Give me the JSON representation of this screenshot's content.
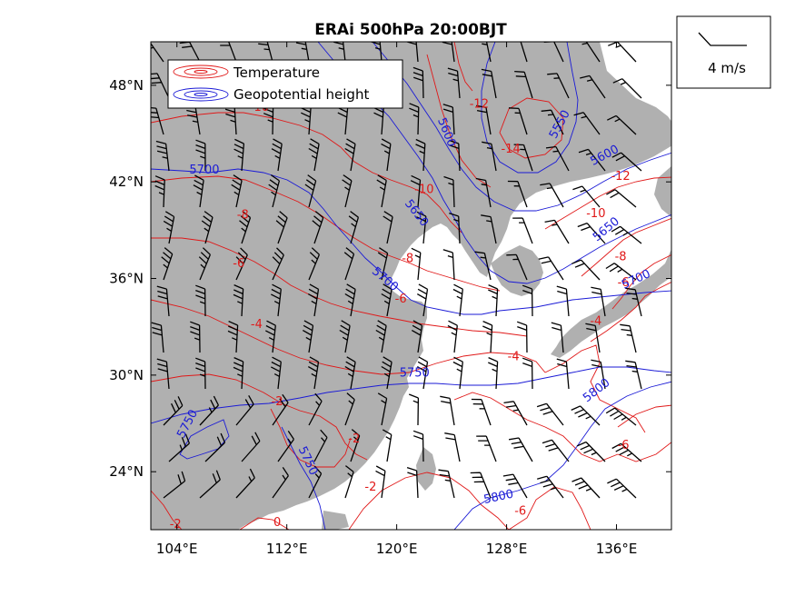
{
  "chart_data": {
    "type": "weather-map",
    "title": "ERAi 500hPa 20:00BJT",
    "x_ticks": [
      "104°E",
      "112°E",
      "120°E",
      "128°E",
      "136°E"
    ],
    "x_tick_values": [
      104,
      112,
      120,
      128,
      136
    ],
    "y_ticks": [
      "48°N",
      "42°N",
      "36°N",
      "30°N",
      "24°N"
    ],
    "y_tick_values": [
      48,
      42,
      36,
      30,
      24
    ],
    "xlim": [
      102.1,
      140
    ],
    "ylim": [
      20.4,
      50.7
    ],
    "legend": {
      "placement": "top-left",
      "items": [
        {
          "label": "Temperature",
          "color": "#e01818"
        },
        {
          "label": "Geopotential height",
          "color": "#1a1ad6"
        }
      ]
    },
    "reference_vector": {
      "label": "4 m/s"
    },
    "temperature_labels": [
      {
        "text": "-10",
        "lon": 110.0,
        "lat": 46.7
      },
      {
        "text": "-8",
        "lon": 108.8,
        "lat": 40.0
      },
      {
        "text": "-6",
        "lon": 108.5,
        "lat": 37.0
      },
      {
        "text": "-4",
        "lon": 109.8,
        "lat": 33.2
      },
      {
        "text": "-2",
        "lon": 111.3,
        "lat": 28.4
      },
      {
        "text": "-2",
        "lon": 116.9,
        "lat": 26.1
      },
      {
        "text": "-2",
        "lon": 118.1,
        "lat": 23.1
      },
      {
        "text": "-2",
        "lon": 103.9,
        "lat": 20.8
      },
      {
        "text": "0",
        "lon": 111.3,
        "lat": 20.9
      },
      {
        "text": "-12",
        "lon": 126.0,
        "lat": 46.9
      },
      {
        "text": "-14",
        "lon": 128.3,
        "lat": 44.1
      },
      {
        "text": "-10",
        "lon": 122.0,
        "lat": 41.6
      },
      {
        "text": "-8",
        "lon": 120.8,
        "lat": 37.3
      },
      {
        "text": "-6",
        "lon": 120.3,
        "lat": 34.8
      },
      {
        "text": "-4",
        "lon": 128.5,
        "lat": 31.2
      },
      {
        "text": "-12",
        "lon": 136.3,
        "lat": 42.4
      },
      {
        "text": "-10",
        "lon": 134.5,
        "lat": 40.1
      },
      {
        "text": "-8",
        "lon": 136.3,
        "lat": 37.4
      },
      {
        "text": "-6",
        "lon": 136.5,
        "lat": 35.8
      },
      {
        "text": "-4",
        "lon": 134.5,
        "lat": 33.4
      },
      {
        "text": "-6",
        "lon": 136.5,
        "lat": 25.7
      },
      {
        "text": "-6",
        "lon": 129.0,
        "lat": 21.6
      }
    ],
    "height_labels": [
      {
        "text": "5700",
        "lon": 106.0,
        "lat": 42.8,
        "rot": 0
      },
      {
        "text": "5600",
        "lon": 123.7,
        "lat": 45.1,
        "rot": 68
      },
      {
        "text": "5550",
        "lon": 131.8,
        "lat": 45.6,
        "rot": -62
      },
      {
        "text": "5600",
        "lon": 135.1,
        "lat": 43.7,
        "rot": -28
      },
      {
        "text": "5650",
        "lon": 121.5,
        "lat": 40.1,
        "rot": 52
      },
      {
        "text": "5650",
        "lon": 135.2,
        "lat": 39.1,
        "rot": -40
      },
      {
        "text": "5700",
        "lon": 119.2,
        "lat": 36.0,
        "rot": 40
      },
      {
        "text": "5700",
        "lon": 137.4,
        "lat": 36.0,
        "rot": -25
      },
      {
        "text": "5750",
        "lon": 121.3,
        "lat": 30.2,
        "rot": 0
      },
      {
        "text": "5800",
        "lon": 134.5,
        "lat": 29.1,
        "rot": -38
      },
      {
        "text": "5750",
        "lon": 104.7,
        "lat": 27.0,
        "rot": -62
      },
      {
        "text": "5750",
        "lon": 113.6,
        "lat": 24.7,
        "rot": 65
      },
      {
        "text": "5800",
        "lon": 127.4,
        "lat": 22.5,
        "rot": -12
      }
    ]
  }
}
